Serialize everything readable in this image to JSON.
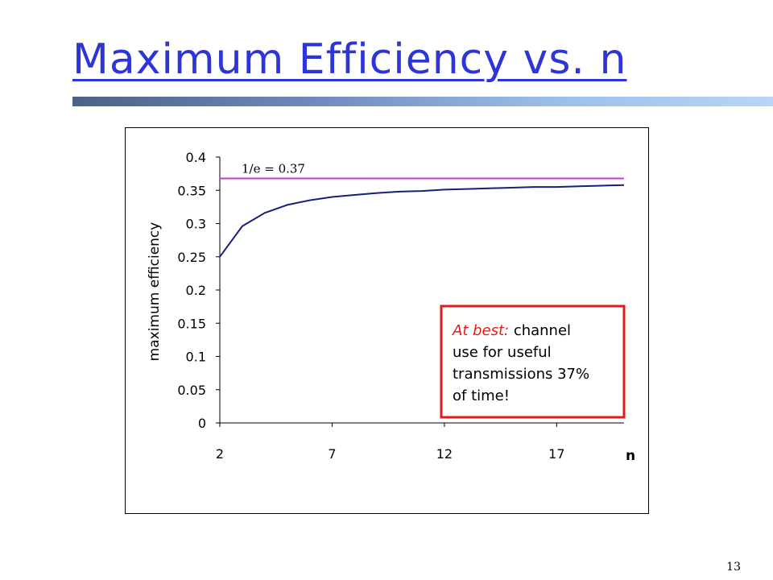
{
  "slide": {
    "title": "Maximum Efficiency vs. n",
    "page_number": "13"
  },
  "colors": {
    "title": "#2d34d8",
    "curve": "#1b1f7c",
    "reference_line": "#c23fc5",
    "callout_border": "#e11b1b",
    "callout_emphasis": "#e11b1b"
  },
  "callout": {
    "emphasis": "At best:",
    "text": "channel use for useful transmissions 37% of time!"
  },
  "chart_data": {
    "type": "line",
    "xlabel": "n",
    "ylabel": "maximum efficiency",
    "xlim": [
      2,
      20
    ],
    "ylim": [
      0,
      0.4
    ],
    "x_ticks": [
      "2",
      "7",
      "12",
      "17"
    ],
    "y_ticks": [
      "0",
      "0.05",
      "0.1",
      "0.15",
      "0.2",
      "0.25",
      "0.3",
      "0.35",
      "0.4"
    ],
    "grid": false,
    "series": [
      {
        "x": [
          2,
          3,
          4,
          5,
          6,
          7,
          8,
          9,
          10,
          11,
          12,
          13,
          14,
          15,
          16,
          17,
          18,
          19,
          20
        ],
        "y": [
          0.25,
          0.296,
          0.316,
          0.328,
          0.335,
          0.34,
          0.343,
          0.346,
          0.348,
          0.349,
          0.351,
          0.352,
          0.353,
          0.354,
          0.355,
          0.355,
          0.356,
          0.357,
          0.358
        ]
      }
    ],
    "reference_lines": [
      {
        "y": 0.3679,
        "label": "1/e = 0.37"
      }
    ]
  }
}
